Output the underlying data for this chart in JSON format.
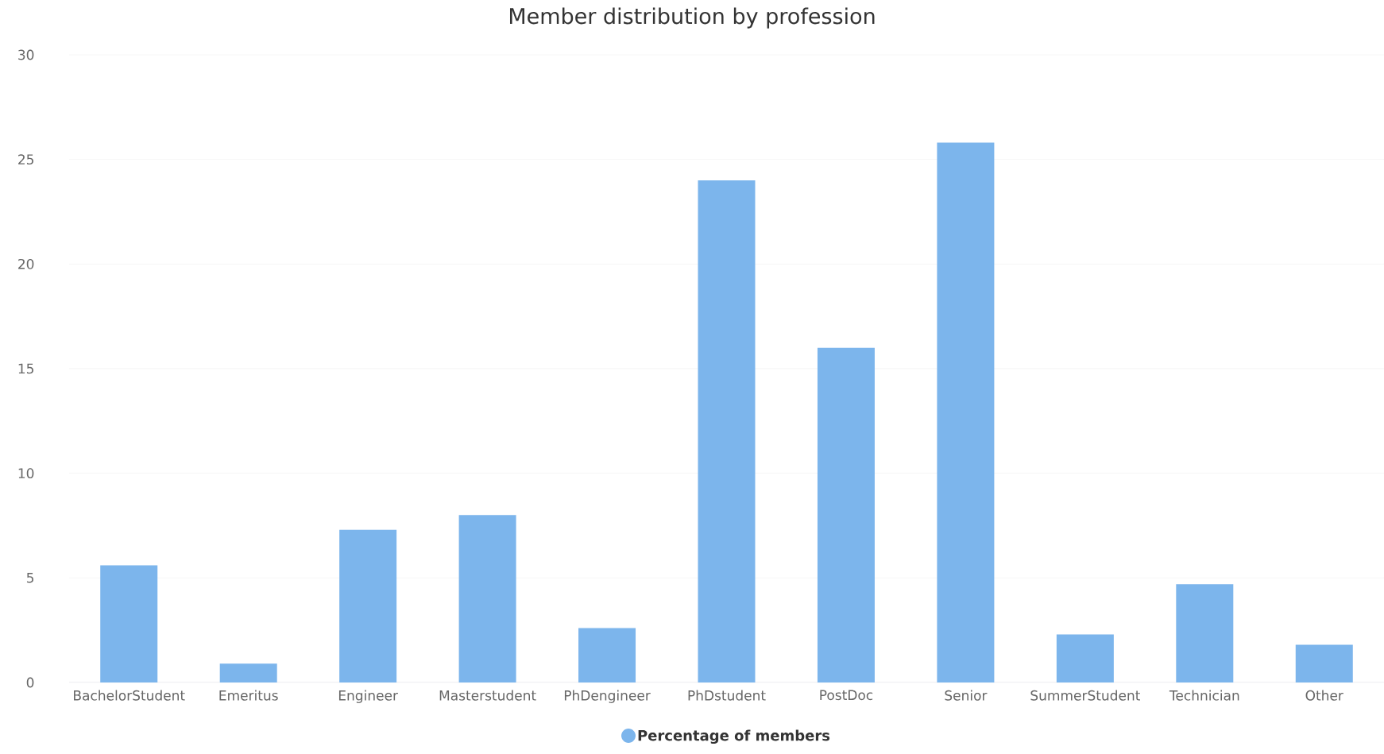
{
  "chart_data": {
    "type": "bar",
    "title": "Member distribution by profession",
    "categories": [
      "BachelorStudent",
      "Emeritus",
      "Engineer",
      "Masterstudent",
      "PhDengineer",
      "PhDstudent",
      "PostDoc",
      "Senior",
      "SummerStudent",
      "Technician",
      "Other"
    ],
    "series": [
      {
        "name": "Percentage of members",
        "color": "#7cb5ec",
        "values": [
          5.6,
          0.9,
          7.3,
          8.0,
          2.6,
          24.0,
          16.0,
          25.8,
          2.3,
          4.7,
          1.8
        ]
      }
    ],
    "ylim": [
      0,
      30
    ],
    "yticks": [
      0,
      5,
      10,
      15,
      20,
      25,
      30
    ],
    "grid": "y",
    "legend": "bottom"
  }
}
